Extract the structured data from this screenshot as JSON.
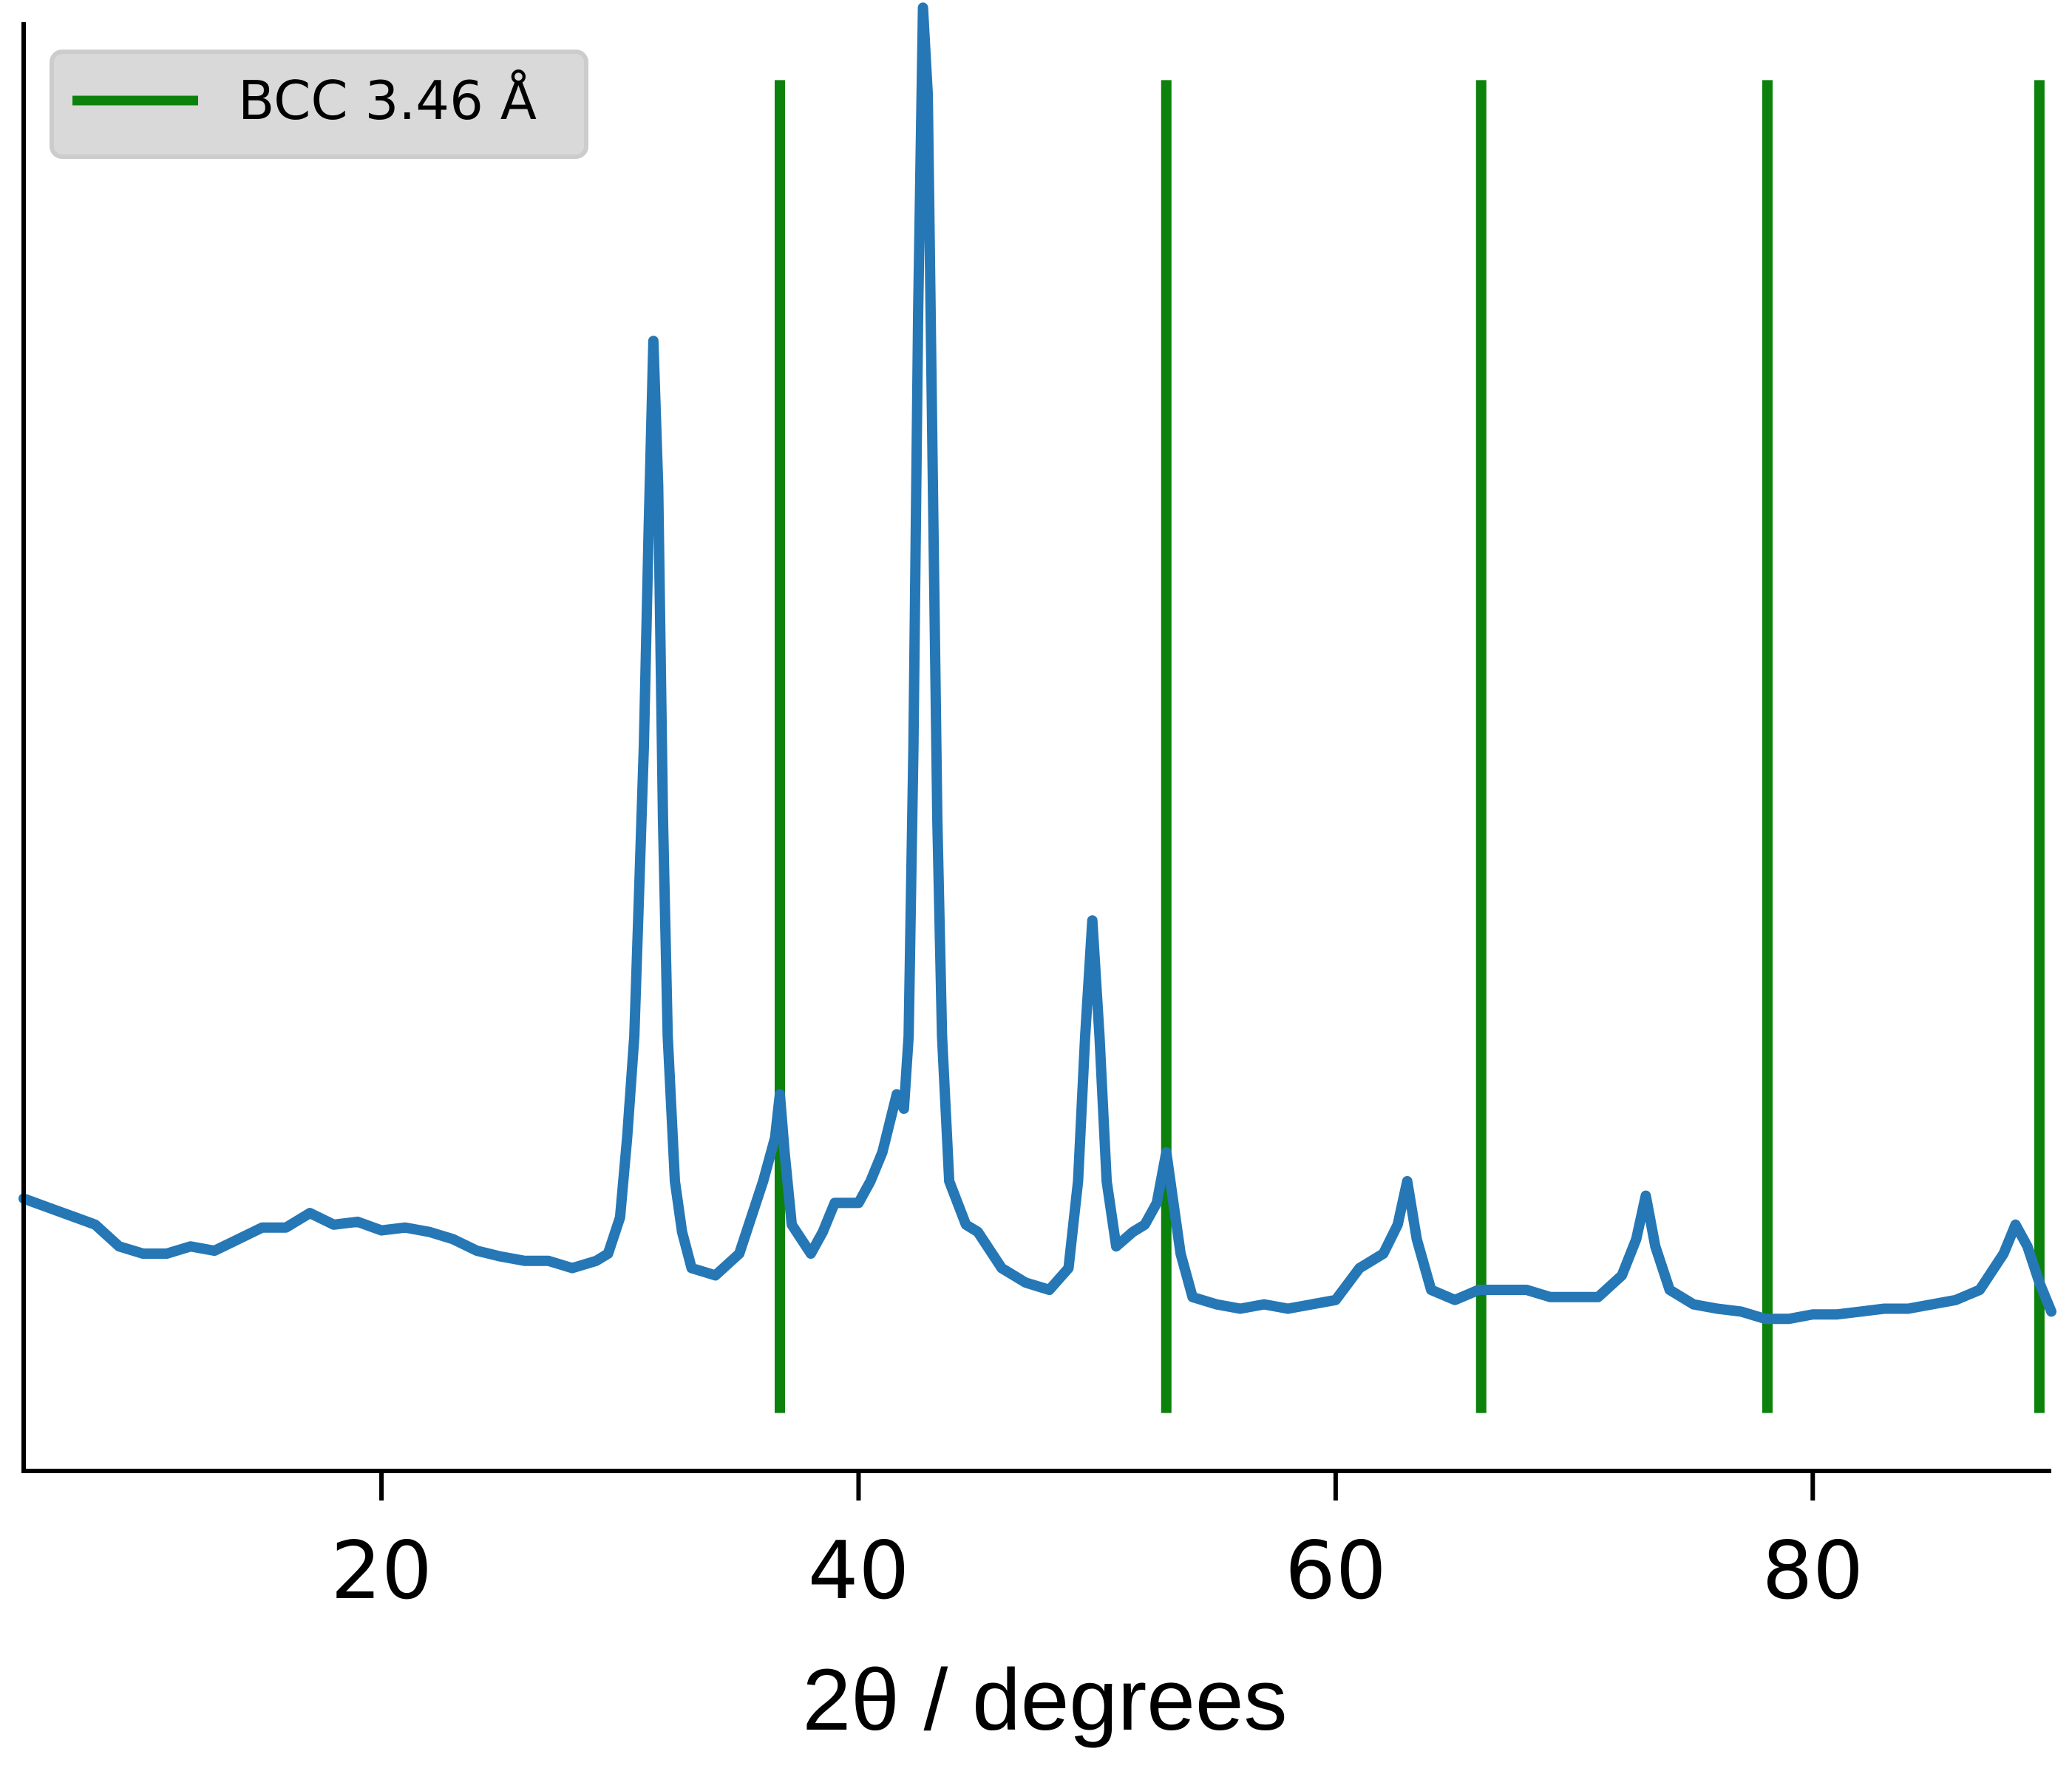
{
  "chart_data": {
    "type": "line",
    "title": "",
    "xlabel": "2θ / degrees",
    "ylabel": "",
    "xlim": [
      5,
      90
    ],
    "ylim": [
      0,
      1
    ],
    "x_ticks": [
      20,
      40,
      60,
      80
    ],
    "x_tick_labels": [
      "20",
      "40",
      "60",
      "80"
    ],
    "y_ticks_shown": false,
    "grid": false,
    "legend": {
      "placement": "top-left",
      "entries": [
        "BCC 3.46 Å"
      ]
    },
    "colors": {
      "pattern": "#2577b5",
      "reference": "#0c810c"
    },
    "series": [
      {
        "style": "line",
        "color": "#2577b5",
        "points": [
          [
            5.0,
            0.188
          ],
          [
            6,
            0.182
          ],
          [
            7,
            0.176
          ],
          [
            8,
            0.17
          ],
          [
            9,
            0.155
          ],
          [
            10,
            0.15
          ],
          [
            11,
            0.15
          ],
          [
            12,
            0.155
          ],
          [
            13,
            0.152
          ],
          [
            14,
            0.16
          ],
          [
            15,
            0.168
          ],
          [
            16,
            0.168
          ],
          [
            17,
            0.178
          ],
          [
            18,
            0.17
          ],
          [
            19,
            0.172
          ],
          [
            20,
            0.166
          ],
          [
            21,
            0.168
          ],
          [
            22,
            0.165
          ],
          [
            23,
            0.16
          ],
          [
            24,
            0.152
          ],
          [
            25,
            0.148
          ],
          [
            26,
            0.145
          ],
          [
            27,
            0.145
          ],
          [
            28,
            0.14
          ],
          [
            29,
            0.145
          ],
          [
            29.5,
            0.15
          ],
          [
            30.0,
            0.175
          ],
          [
            30.3,
            0.23
          ],
          [
            30.6,
            0.3
          ],
          [
            30.8,
            0.4
          ],
          [
            31.0,
            0.5
          ],
          [
            31.2,
            0.65
          ],
          [
            31.4,
            0.78
          ],
          [
            31.6,
            0.68
          ],
          [
            31.8,
            0.45
          ],
          [
            32.0,
            0.3
          ],
          [
            32.3,
            0.2
          ],
          [
            32.6,
            0.165
          ],
          [
            33,
            0.14
          ],
          [
            34,
            0.135
          ],
          [
            35,
            0.15
          ],
          [
            36,
            0.2
          ],
          [
            36.5,
            0.23
          ],
          [
            36.7,
            0.26
          ],
          [
            36.9,
            0.22
          ],
          [
            37.2,
            0.17
          ],
          [
            38,
            0.15
          ],
          [
            38.5,
            0.165
          ],
          [
            39,
            0.185
          ],
          [
            40,
            0.185
          ],
          [
            40.5,
            0.2
          ],
          [
            41,
            0.22
          ],
          [
            41.3,
            0.24
          ],
          [
            41.6,
            0.26
          ],
          [
            41.9,
            0.25
          ],
          [
            42.1,
            0.3
          ],
          [
            42.3,
            0.5
          ],
          [
            42.5,
            0.8
          ],
          [
            42.7,
            1.01
          ],
          [
            42.9,
            0.95
          ],
          [
            43.1,
            0.7
          ],
          [
            43.3,
            0.45
          ],
          [
            43.5,
            0.3
          ],
          [
            43.8,
            0.2
          ],
          [
            44.5,
            0.17
          ],
          [
            45,
            0.165
          ],
          [
            46,
            0.14
          ],
          [
            47,
            0.13
          ],
          [
            48,
            0.125
          ],
          [
            48.8,
            0.14
          ],
          [
            49.2,
            0.2
          ],
          [
            49.5,
            0.3
          ],
          [
            49.8,
            0.38
          ],
          [
            50.1,
            0.3
          ],
          [
            50.4,
            0.2
          ],
          [
            50.8,
            0.155
          ],
          [
            51.5,
            0.165
          ],
          [
            52,
            0.17
          ],
          [
            52.5,
            0.185
          ],
          [
            52.9,
            0.22
          ],
          [
            53.2,
            0.185
          ],
          [
            53.5,
            0.15
          ],
          [
            54,
            0.12
          ],
          [
            55,
            0.115
          ],
          [
            56,
            0.112
          ],
          [
            57,
            0.115
          ],
          [
            58,
            0.112
          ],
          [
            59,
            0.115
          ],
          [
            60,
            0.118
          ],
          [
            61,
            0.14
          ],
          [
            62,
            0.15
          ],
          [
            62.6,
            0.17
          ],
          [
            63.0,
            0.2
          ],
          [
            63.4,
            0.16
          ],
          [
            64,
            0.125
          ],
          [
            65,
            0.118
          ],
          [
            66,
            0.125
          ],
          [
            67,
            0.125
          ],
          [
            68,
            0.125
          ],
          [
            69,
            0.12
          ],
          [
            70,
            0.12
          ],
          [
            71,
            0.12
          ],
          [
            72,
            0.135
          ],
          [
            72.6,
            0.16
          ],
          [
            73.0,
            0.19
          ],
          [
            73.4,
            0.155
          ],
          [
            74,
            0.125
          ],
          [
            75,
            0.115
          ],
          [
            76,
            0.112
          ],
          [
            77,
            0.11
          ],
          [
            78,
            0.105
          ],
          [
            79,
            0.105
          ],
          [
            80,
            0.108
          ],
          [
            81,
            0.108
          ],
          [
            82,
            0.11
          ],
          [
            83,
            0.112
          ],
          [
            84,
            0.112
          ],
          [
            85,
            0.115
          ],
          [
            86,
            0.118
          ],
          [
            87,
            0.125
          ],
          [
            88,
            0.15
          ],
          [
            88.5,
            0.17
          ],
          [
            89,
            0.155
          ],
          [
            89.5,
            0.13
          ],
          [
            90,
            0.11
          ]
        ]
      },
      {
        "name": "BCC 3.46 Å",
        "style": "vlines",
        "color": "#0c810c",
        "x": [
          36.7,
          52.9,
          66.1,
          78.1,
          89.5
        ],
        "ymin": 0.04,
        "ymax": 0.96
      }
    ]
  }
}
